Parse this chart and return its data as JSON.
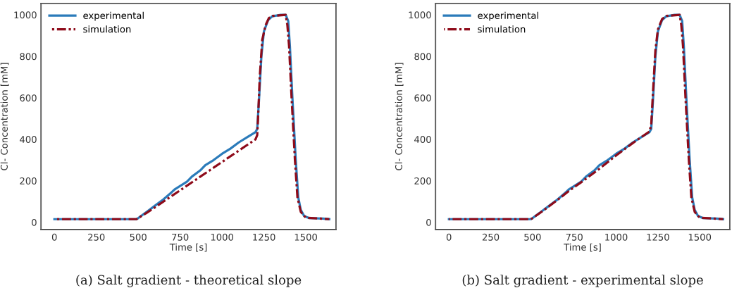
{
  "chart_data": [
    {
      "type": "line",
      "xlabel": "Time [s]",
      "ylabel": "Cl- Concentration [mM]",
      "xlim": [
        -80,
        1680
      ],
      "ylim": [
        -35,
        1055
      ],
      "xticks": [
        0,
        250,
        500,
        750,
        1000,
        1250,
        1500
      ],
      "yticks": [
        0,
        200,
        400,
        600,
        800,
        1000
      ],
      "grid": false,
      "legend": "top left",
      "annotations": [
        "(a) Salt gradient - theoretical slope"
      ],
      "series": [
        {
          "name": "experimental",
          "color": "#2b7bba",
          "line_style": "solid",
          "x": [
            0,
            490,
            500,
            550,
            600,
            650,
            700,
            720,
            750,
            790,
            820,
            870,
            900,
            950,
            1000,
            1050,
            1100,
            1150,
            1200,
            1210,
            1220,
            1235,
            1250,
            1275,
            1300,
            1350,
            1380,
            1395,
            1405,
            1420,
            1440,
            1455,
            1470,
            1490,
            1520,
            1600,
            1640
          ],
          "values": [
            15,
            15,
            20,
            50,
            80,
            110,
            145,
            160,
            175,
            195,
            220,
            250,
            275,
            300,
            330,
            355,
            385,
            410,
            435,
            450,
            580,
            800,
            920,
            975,
            993,
            1000,
            1000,
            970,
            850,
            600,
            300,
            120,
            60,
            30,
            20,
            18,
            15
          ]
        },
        {
          "name": "simulation",
          "color": "#8e0b1a",
          "line_style": "dashdot",
          "x": [
            0,
            490,
            500,
            550,
            600,
            1200,
            1210,
            1215,
            1225,
            1240,
            1260,
            1280,
            1300,
            1380,
            1390,
            1400,
            1415,
            1435,
            1450,
            1470,
            1500,
            1640
          ],
          "values": [
            15,
            15,
            20,
            45,
            72,
            400,
            420,
            500,
            700,
            880,
            950,
            985,
            995,
            1000,
            950,
            850,
            600,
            300,
            120,
            50,
            22,
            15
          ]
        }
      ]
    },
    {
      "type": "line",
      "xlabel": "Time [s]",
      "ylabel": "Cl- Concentration [mM]",
      "xlim": [
        -80,
        1680
      ],
      "ylim": [
        -35,
        1055
      ],
      "xticks": [
        0,
        250,
        500,
        750,
        1000,
        1250,
        1500
      ],
      "yticks": [
        0,
        200,
        400,
        600,
        800,
        1000
      ],
      "grid": false,
      "legend": "top left",
      "annotations": [
        "(b) Salt gradient - experimental slope"
      ],
      "series": [
        {
          "name": "experimental",
          "color": "#2b7bba",
          "line_style": "solid",
          "x": [
            0,
            490,
            500,
            550,
            600,
            650,
            700,
            720,
            750,
            790,
            820,
            870,
            900,
            950,
            1000,
            1050,
            1100,
            1150,
            1200,
            1210,
            1220,
            1235,
            1250,
            1275,
            1300,
            1350,
            1380,
            1395,
            1405,
            1420,
            1440,
            1455,
            1470,
            1490,
            1520,
            1600,
            1640
          ],
          "values": [
            15,
            15,
            20,
            50,
            80,
            110,
            145,
            160,
            175,
            195,
            220,
            250,
            275,
            300,
            330,
            355,
            385,
            410,
            435,
            450,
            580,
            800,
            920,
            975,
            993,
            1000,
            1000,
            970,
            850,
            600,
            300,
            120,
            60,
            30,
            20,
            18,
            15
          ]
        },
        {
          "name": "simulation",
          "color": "#8e0b1a",
          "line_style": "dashdot",
          "x": [
            0,
            490,
            500,
            550,
            600,
            650,
            700,
            750,
            800,
            850,
            900,
            950,
            1000,
            1050,
            1100,
            1150,
            1200,
            1210,
            1220,
            1235,
            1250,
            1275,
            1300,
            1380,
            1390,
            1400,
            1415,
            1435,
            1450,
            1470,
            1500,
            1640
          ],
          "values": [
            15,
            15,
            20,
            48,
            78,
            108,
            140,
            170,
            198,
            228,
            258,
            290,
            322,
            352,
            382,
            410,
            438,
            470,
            620,
            830,
            930,
            980,
            995,
            1000,
            950,
            850,
            600,
            300,
            120,
            50,
            22,
            15
          ]
        }
      ]
    }
  ]
}
